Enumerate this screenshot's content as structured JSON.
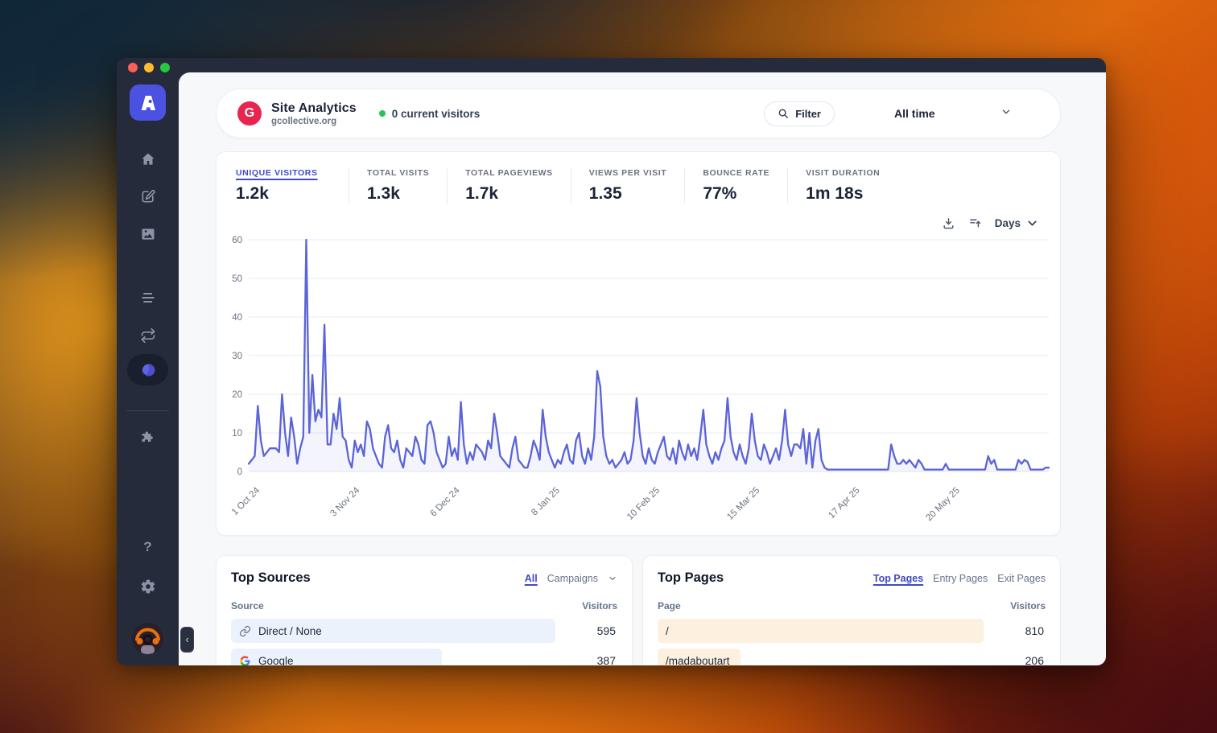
{
  "window": {
    "traffic_lights": [
      "close",
      "minimize",
      "zoom"
    ],
    "collapse_glyph": "‹"
  },
  "sidebar": {
    "workspace_initial": "A",
    "help_label": "?"
  },
  "header": {
    "site_initial": "G",
    "title": "Site Analytics",
    "domain": "gcollective.org",
    "live_status": "0 current visitors",
    "filter_label": "Filter",
    "date_range": "All time"
  },
  "stats": {
    "items": [
      {
        "label": "UNIQUE VISITORS",
        "value": "1.2k",
        "active": true
      },
      {
        "label": "TOTAL VISITS",
        "value": "1.3k",
        "active": false
      },
      {
        "label": "TOTAL PAGEVIEWS",
        "value": "1.7k",
        "active": false
      },
      {
        "label": "VIEWS PER VISIT",
        "value": "1.35",
        "active": false
      },
      {
        "label": "BOUNCE RATE",
        "value": "77%",
        "active": false
      },
      {
        "label": "VISIT DURATION",
        "value": "1m 18s",
        "active": false
      }
    ]
  },
  "chart_controls": {
    "interval": "Days"
  },
  "chart_data": {
    "type": "line",
    "title": "Unique visitors by day",
    "ylim": [
      0,
      60
    ],
    "y_ticks": [
      0,
      10,
      20,
      30,
      40,
      50,
      60
    ],
    "x_tick_indices": [
      0,
      33,
      66,
      99,
      132,
      165,
      198,
      231
    ],
    "x_tick_labels": [
      "1 Oct 24",
      "3 Nov 24",
      "6 Dec 24",
      "8 Jan 25",
      "10 Feb 25",
      "15 Mar 25",
      "17 Apr 25",
      "20 May 25"
    ],
    "grid": true,
    "line_color": "#5b64d8",
    "area_color": "rgba(91,100,216,0.07)",
    "values": [
      2,
      3,
      4,
      17,
      8,
      4,
      5,
      6,
      6,
      6,
      5,
      20,
      10,
      4,
      14,
      9,
      2,
      6,
      9,
      60,
      10,
      25,
      13,
      16,
      14,
      38,
      7,
      7,
      15,
      11,
      19,
      9,
      8,
      3,
      1,
      8,
      5,
      7,
      4,
      13,
      11,
      6,
      4,
      2,
      1,
      9,
      12,
      6,
      5,
      8,
      3,
      1,
      6,
      5,
      4,
      9,
      7,
      3,
      2,
      12,
      13,
      10,
      5,
      3,
      1,
      2,
      9,
      4,
      6,
      3,
      18,
      7,
      2,
      5,
      3,
      7,
      6,
      5,
      3,
      8,
      6,
      15,
      10,
      4,
      3,
      2,
      1,
      6,
      9,
      3,
      2,
      1,
      1,
      4,
      8,
      6,
      3,
      16,
      9,
      5,
      3,
      1,
      3,
      2,
      5,
      7,
      3,
      2,
      8,
      10,
      4,
      2,
      6,
      3,
      9,
      26,
      22,
      9,
      4,
      2,
      3,
      1,
      2,
      3,
      5,
      2,
      3,
      8,
      19,
      10,
      4,
      2,
      6,
      3,
      2,
      5,
      7,
      9,
      4,
      3,
      6,
      2,
      8,
      5,
      3,
      7,
      4,
      6,
      3,
      9,
      16,
      7,
      4,
      2,
      5,
      3,
      6,
      8,
      19,
      9,
      5,
      3,
      7,
      4,
      2,
      6,
      15,
      8,
      4,
      3,
      7,
      5,
      2,
      4,
      6,
      3,
      8,
      16,
      7,
      4,
      7,
      7,
      6,
      11,
      2,
      10,
      1,
      8,
      11,
      3,
      1,
      0.5,
      0.5,
      0.5,
      0.5,
      0.5,
      0.5,
      0.5,
      0.5,
      0.5,
      0.5,
      0.5,
      0.5,
      0.5,
      0.5,
      0.5,
      0.5,
      0.5,
      0.5,
      0.5,
      0.5,
      0.5,
      7,
      4,
      2,
      2,
      3,
      2,
      3,
      2,
      1,
      3,
      2,
      0.5,
      0.5,
      0.5,
      0.5,
      0.5,
      0.5,
      0.5,
      2,
      0.5,
      0.5,
      0.5,
      0.5,
      0.5,
      0.5,
      0.5,
      0.5,
      0.5,
      0.5,
      0.5,
      0.5,
      0.5,
      4,
      2,
      3,
      0.5,
      0.5,
      0.5,
      0.5,
      0.5,
      0.5,
      0.5,
      3,
      2,
      3,
      2.5,
      0.5,
      0.5,
      0.5,
      0.5,
      0.5,
      1,
      1
    ]
  },
  "top_sources": {
    "title": "Top Sources",
    "tabs": [
      {
        "label": "All"
      },
      {
        "label": "Campaigns"
      }
    ],
    "col_left": "Source",
    "col_right": "Visitors",
    "bar_color": "#ecf2fb",
    "rows": [
      {
        "icon": "link-icon",
        "label": "Direct / None",
        "value": 595
      },
      {
        "icon": "google-icon",
        "label": "Google",
        "value": 387
      }
    ]
  },
  "top_pages": {
    "title": "Top Pages",
    "tabs": [
      {
        "label": "Top Pages"
      },
      {
        "label": "Entry Pages"
      },
      {
        "label": "Exit Pages"
      }
    ],
    "col_left": "Page",
    "col_right": "Visitors",
    "bar_color": "#fdf0df",
    "rows": [
      {
        "icon": "",
        "label": "/",
        "value": 810
      },
      {
        "icon": "",
        "label": "/madaboutart",
        "value": 206
      }
    ]
  },
  "colors": {
    "accent": "#4f46e5",
    "logo": "#e8254f",
    "live_dot": "#22c55e",
    "line": "#5b64d8"
  }
}
